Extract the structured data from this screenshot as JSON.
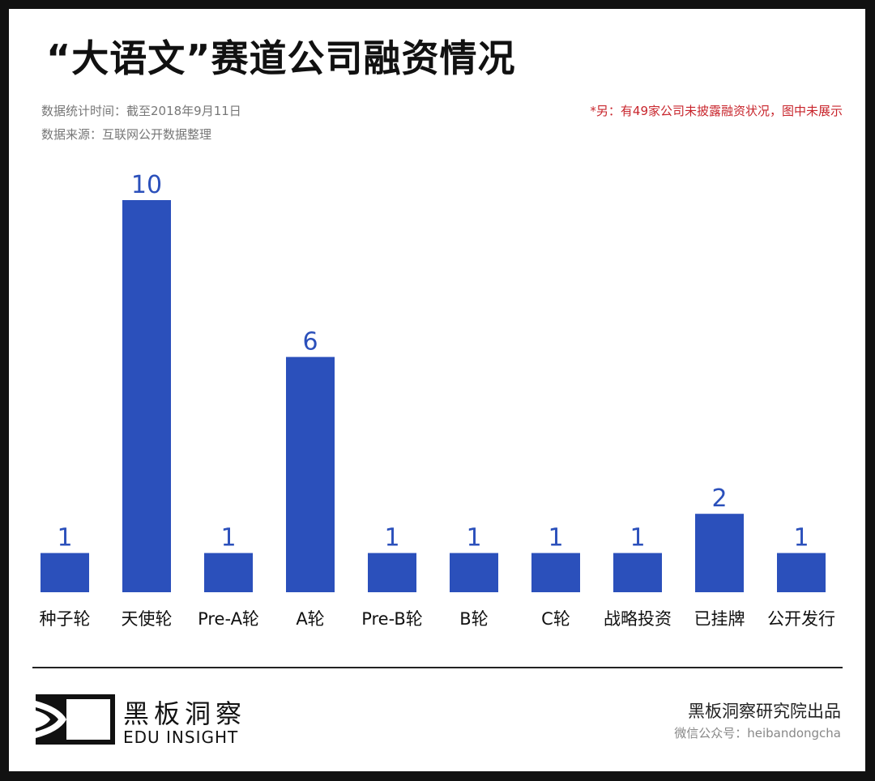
{
  "title": "“大语文”赛道公司融资情况",
  "meta": {
    "stat_time": "数据统计时间：截至2018年9月11日",
    "source": "数据来源：互联网公开数据整理",
    "note": "*另：有49家公司未披露融资状况，图中未展示"
  },
  "colors": {
    "bar": "#2b50bb",
    "label": "#2b50bb",
    "note": "#c8252c"
  },
  "chart_data": {
    "type": "bar",
    "title": "“大语文”赛道公司融资情况",
    "categories": [
      "种子轮",
      "天使轮",
      "Pre-A轮",
      "A轮",
      "Pre-B轮",
      "B轮",
      "C轮",
      "战略投资",
      "已挂牌",
      "公开发行"
    ],
    "values": [
      1,
      10,
      1,
      6,
      1,
      1,
      1,
      1,
      2,
      1
    ],
    "ylim": [
      0,
      10
    ],
    "grid": false,
    "data_labels": true
  },
  "footer": {
    "brand_cn": "黑板洞察",
    "brand_en": "EDU INSIGHT",
    "credit": "黑板洞察研究院出品",
    "wechat": "微信公众号：heibandongcha"
  }
}
